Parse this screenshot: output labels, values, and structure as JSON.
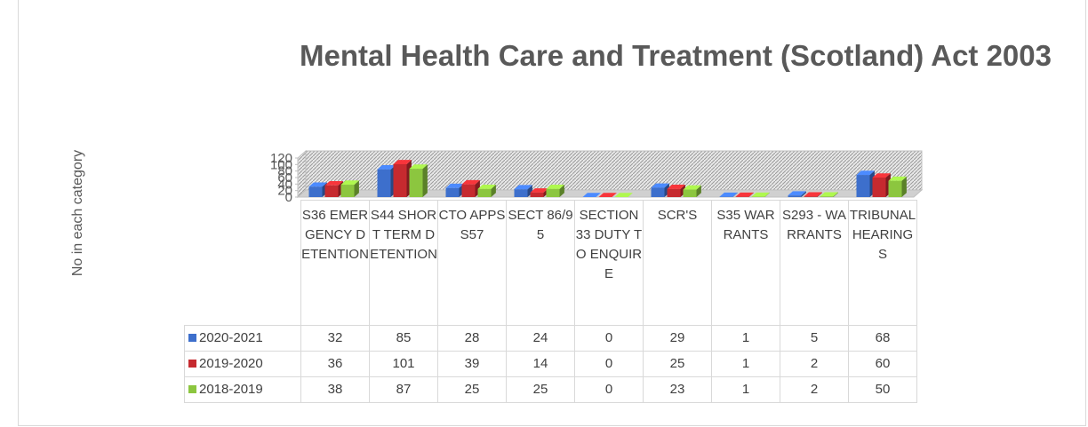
{
  "chart_data": {
    "type": "bar3d",
    "title": "Mental Health Care and Treatment (Scotland) Act 2003",
    "y_label": "No in each category",
    "categories": [
      "S36 EMERGENCY DETENTION",
      "S44 SHORT TERM DETENTION",
      "CTO APPS S57",
      "SECT 86/95",
      "SECTION 33 DUTY TO ENQUIRE",
      "SCR'S",
      "S35 WARRANTS",
      "S293 - WARRANTS",
      "TRIBUNAL HEARINGS"
    ],
    "series": [
      {
        "name": "2020-2021",
        "color": "#3d6fcc",
        "values": [
          32,
          85,
          28,
          24,
          0,
          29,
          1,
          5,
          68
        ]
      },
      {
        "name": "2019-2020",
        "color": "#c62a2f",
        "values": [
          36,
          101,
          39,
          14,
          0,
          25,
          1,
          2,
          60
        ]
      },
      {
        "name": "2018-2019",
        "color": "#8cc63f",
        "values": [
          38,
          87,
          25,
          25,
          0,
          23,
          1,
          2,
          50
        ]
      }
    ],
    "ylim": [
      0,
      120
    ],
    "yticks": [
      0,
      20,
      40,
      60,
      80,
      100,
      120
    ]
  }
}
